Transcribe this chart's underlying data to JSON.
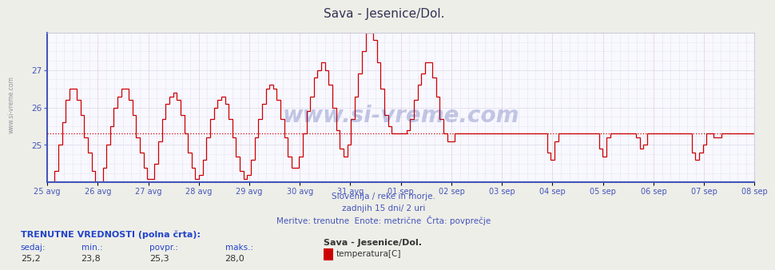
{
  "title": "Sava - Jesenice/Dol.",
  "bg_color": "#eeeee8",
  "plot_bg_color": "#f8f8ff",
  "line_color": "#cc0000",
  "avg_line_color": "#cc0000",
  "avg_value": 25.3,
  "ylim": [
    24.0,
    28.0
  ],
  "yticks": [
    25,
    26,
    27
  ],
  "grid_color": "#ccccdd",
  "grid_color_red": "#ddaabb",
  "xlabel_color": "#4455bb",
  "title_color": "#333333",
  "subtitle_lines": [
    "Slovenija / reke in morje.",
    "zadnjih 15 dni/ 2 uri",
    "Meritve: trenutne  Enote: metrične  Črta: povprečje"
  ],
  "subtitle_color": "#4455bb",
  "bottom_text_title": "TRENUTNE VREDNOSTI (polna črta):",
  "bottom_labels": [
    "sedaj:",
    "min.:",
    "povpr.:",
    "maks.:"
  ],
  "bottom_values": [
    "25,2",
    "23,8",
    "25,3",
    "28,0"
  ],
  "bottom_series_name": "Sava - Jesenice/Dol.",
  "bottom_legend_label": "temperatura[C]",
  "bottom_legend_color": "#cc0000",
  "tick_labels": [
    "25 avg",
    "26 avg",
    "27 avg",
    "28 avg",
    "29 avg",
    "30 avg",
    "31 avg",
    "01 sep",
    "02 sep",
    "03 sep",
    "04 sep",
    "05 sep",
    "06 sep",
    "07 sep",
    "08 sep"
  ],
  "watermark_text": "www.si-vreme.com",
  "left_watermark": "www.si-vreme.com",
  "temperature_data": [
    24.0,
    24.0,
    24.3,
    25.0,
    25.6,
    26.2,
    26.5,
    26.5,
    26.2,
    25.8,
    25.2,
    24.8,
    24.3,
    24.0,
    24.0,
    24.4,
    25.0,
    25.5,
    26.0,
    26.3,
    26.5,
    26.5,
    26.2,
    25.8,
    25.2,
    24.8,
    24.4,
    24.1,
    24.1,
    24.5,
    25.1,
    25.7,
    26.1,
    26.3,
    26.4,
    26.2,
    25.8,
    25.3,
    24.8,
    24.4,
    24.1,
    24.2,
    24.6,
    25.2,
    25.7,
    26.0,
    26.2,
    26.3,
    26.1,
    25.7,
    25.2,
    24.7,
    24.3,
    24.1,
    24.2,
    24.6,
    25.2,
    25.7,
    26.1,
    26.5,
    26.6,
    26.5,
    26.2,
    25.7,
    25.2,
    24.7,
    24.4,
    24.4,
    24.7,
    25.3,
    25.9,
    26.3,
    26.8,
    27.0,
    27.2,
    27.0,
    26.6,
    26.0,
    25.4,
    24.9,
    24.7,
    25.0,
    25.7,
    26.3,
    26.9,
    27.5,
    28.0,
    28.0,
    27.8,
    27.2,
    26.5,
    25.8,
    25.5,
    25.3,
    25.3,
    25.3,
    25.3,
    25.4,
    25.7,
    26.2,
    26.6,
    26.9,
    27.2,
    27.2,
    26.8,
    26.3,
    25.7,
    25.3,
    25.1,
    25.1,
    25.3,
    25.3,
    25.3,
    25.3,
    25.3,
    25.3,
    25.3,
    25.3,
    25.3,
    25.3,
    25.3,
    25.3,
    25.3,
    25.3,
    25.3,
    25.3,
    25.3,
    25.3,
    25.3,
    25.3,
    25.3,
    25.3,
    25.3,
    25.3,
    25.3,
    24.8,
    24.6,
    25.1,
    25.3,
    25.3,
    25.3,
    25.3,
    25.3,
    25.3,
    25.3,
    25.3,
    25.3,
    25.3,
    25.3,
    24.9,
    24.7,
    25.2,
    25.3,
    25.3,
    25.3,
    25.3,
    25.3,
    25.3,
    25.3,
    25.2,
    24.9,
    25.0,
    25.3,
    25.3,
    25.3,
    25.3,
    25.3,
    25.3,
    25.3,
    25.3,
    25.3,
    25.3,
    25.3,
    25.3,
    24.8,
    24.6,
    24.8,
    25.0,
    25.3,
    25.3,
    25.2,
    25.2,
    25.3,
    25.3,
    25.3,
    25.3,
    25.3,
    25.3,
    25.3,
    25.3,
    25.3,
    25.3
  ]
}
